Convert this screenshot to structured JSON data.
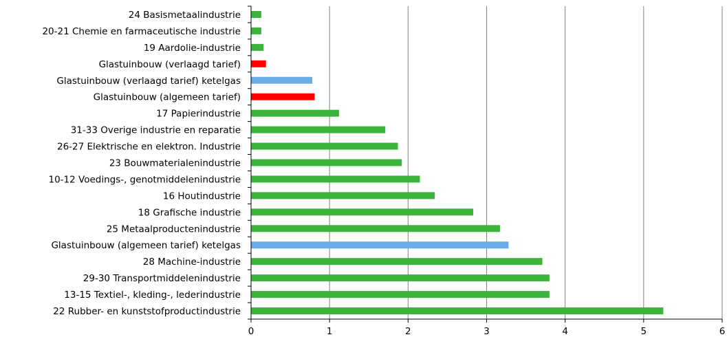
{
  "chart_data": {
    "type": "bar",
    "orientation": "horizontal",
    "title": "",
    "xlabel": "",
    "ylabel": "",
    "xlim": [
      0,
      6
    ],
    "x_ticks": [
      "0",
      "1",
      "2",
      "3",
      "4",
      "5",
      "6"
    ],
    "grid": "vertical",
    "legend": "none",
    "colors": {
      "green": "#3cb33c",
      "red": "#ff0000",
      "blue": "#6aabe6"
    },
    "categories": [
      "24 Basismetaalindustrie",
      "20-21 Chemie en farmaceutische industrie",
      "19 Aardolie-industrie",
      "Glastuinbouw (verlaagd tarief)",
      "Glastuinbouw (verlaagd tarief) ketelgas",
      "Glastuinbouw (algemeen tarief)",
      "17 Papierindustrie",
      "31-33 Overige industrie en reparatie",
      "26-27 Elektrische en elektron. Industrie",
      "23 Bouwmaterialenindustrie",
      "10-12 Voedings-, genotmiddelenindustrie",
      "16 Houtindustrie",
      "18 Grafische industrie",
      "25 Metaalproductenindustrie",
      "Glastuinbouw (algemeen tarief) ketelgas",
      "28 Machine-industrie",
      "29-30 Transportmiddelenindustrie",
      "13-15 Textiel-, kleding-, lederindustrie",
      "22 Rubber- en kunststofproductindustrie"
    ],
    "values": [
      0.13,
      0.13,
      0.16,
      0.19,
      0.78,
      0.81,
      1.12,
      1.71,
      1.87,
      1.92,
      2.15,
      2.34,
      2.83,
      3.17,
      3.28,
      3.71,
      3.8,
      3.8,
      5.25
    ],
    "bar_colors": [
      "green",
      "green",
      "green",
      "red",
      "blue",
      "red",
      "green",
      "green",
      "green",
      "green",
      "green",
      "green",
      "green",
      "green",
      "blue",
      "green",
      "green",
      "green",
      "green"
    ]
  }
}
